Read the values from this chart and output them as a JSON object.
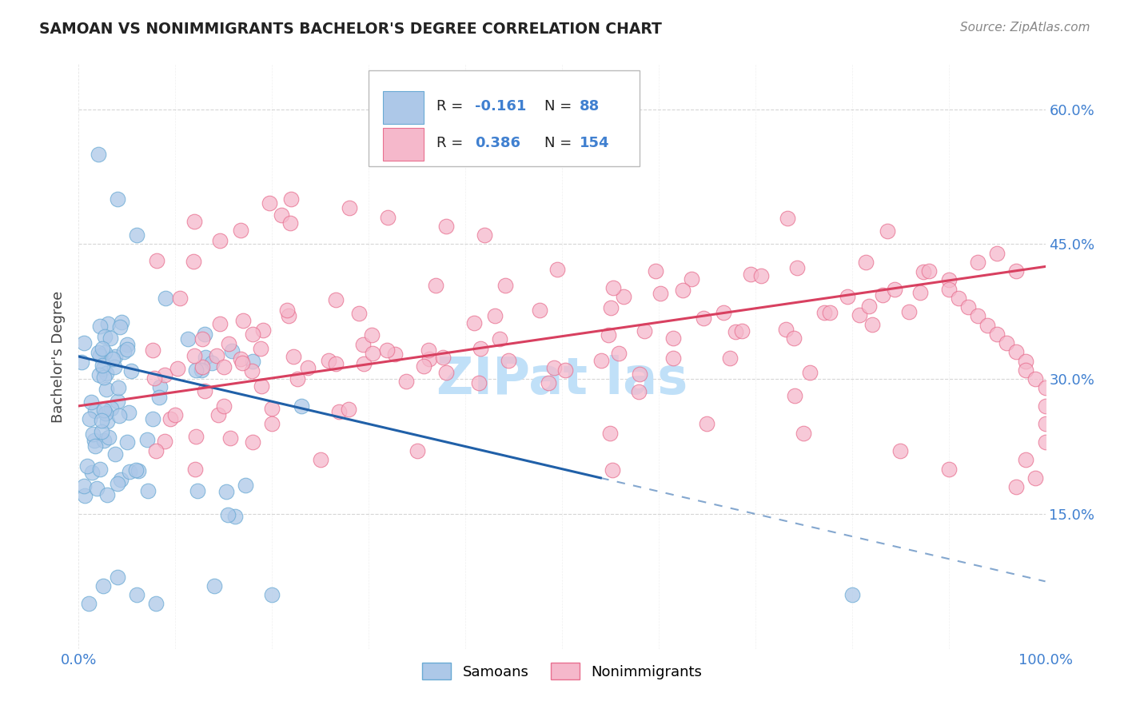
{
  "title": "SAMOAN VS NONIMMIGRANTS BACHELOR'S DEGREE CORRELATION CHART",
  "source": "Source: ZipAtlas.com",
  "ylabel": "Bachelor's Degree",
  "x_min": 0.0,
  "x_max": 1.0,
  "y_min": 0.0,
  "y_max": 0.65,
  "samoan_color": "#adc8e8",
  "samoan_edge_color": "#6aaad4",
  "nonimm_color": "#f5b8cb",
  "nonimm_edge_color": "#e87090",
  "samoan_line_color": "#2060a8",
  "nonimm_line_color": "#d84060",
  "R_samoan": -0.161,
  "N_samoan": 88,
  "R_nonimm": 0.386,
  "N_nonimm": 154,
  "background_color": "#ffffff",
  "grid_color": "#cccccc",
  "legend_label_samoan": "Samoans",
  "legend_label_nonimm": "Nonimmigrants",
  "tick_color": "#4080d0",
  "title_color": "#222222",
  "source_color": "#888888",
  "watermark_color": "#c0e0f8",
  "samoan_line_y0": 0.325,
  "samoan_line_y1": 0.19,
  "samoan_line_x0": 0.0,
  "samoan_line_x1": 0.54,
  "nonimm_line_y0": 0.27,
  "nonimm_line_y1": 0.425,
  "nonimm_line_x0": 0.0,
  "nonimm_line_x1": 1.0
}
